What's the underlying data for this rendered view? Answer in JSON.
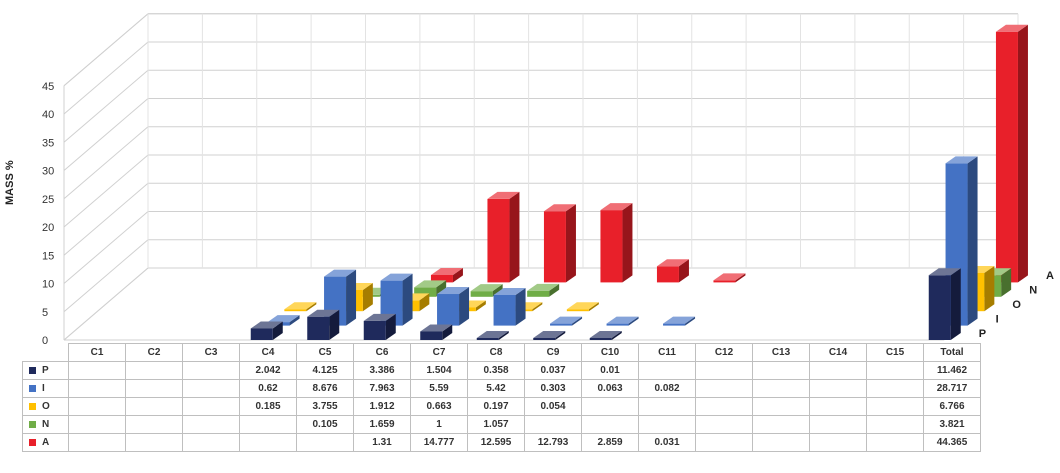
{
  "chart_data": {
    "type": "bar",
    "variant": "3d-column",
    "ylabel": "MASS %",
    "ylim": [
      0,
      45
    ],
    "yticks": [
      0,
      5,
      10,
      15,
      20,
      25,
      30,
      35,
      40,
      45
    ],
    "grid": true,
    "categories": [
      "C1",
      "C2",
      "C3",
      "C4",
      "C5",
      "C6",
      "C7",
      "C8",
      "C9",
      "C10",
      "C11",
      "C12",
      "C13",
      "C14",
      "C15",
      "Total"
    ],
    "series": [
      {
        "name": "P",
        "color": "#1f2a5c",
        "values": [
          null,
          null,
          null,
          2.042,
          4.125,
          3.386,
          1.504,
          0.358,
          0.037,
          0.01,
          null,
          null,
          null,
          null,
          null,
          11.462
        ]
      },
      {
        "name": "I",
        "color": "#4472c4",
        "values": [
          null,
          null,
          null,
          0.62,
          8.676,
          7.963,
          5.59,
          5.42,
          0.303,
          0.063,
          0.082,
          null,
          null,
          null,
          null,
          28.717
        ]
      },
      {
        "name": "O",
        "color": "#ffc000",
        "values": [
          null,
          null,
          null,
          0.185,
          3.755,
          1.912,
          0.663,
          0.197,
          0.054,
          null,
          null,
          null,
          null,
          null,
          null,
          6.766
        ]
      },
      {
        "name": "N",
        "color": "#70ad47",
        "values": [
          null,
          null,
          null,
          null,
          0.105,
          1.659,
          1,
          1.057,
          null,
          null,
          null,
          null,
          null,
          null,
          null,
          3.821
        ]
      },
      {
        "name": "A",
        "color": "#e8202a",
        "values": [
          null,
          null,
          null,
          null,
          null,
          1.31,
          14.777,
          12.595,
          12.793,
          2.859,
          0.031,
          null,
          null,
          null,
          null,
          44.365
        ]
      }
    ],
    "table_values": [
      [
        "",
        "",
        "",
        "2.042",
        "4.125",
        "3.386",
        "1.504",
        "0.358",
        "0.037",
        "0.01",
        "",
        "",
        "",
        "",
        "",
        "11.462"
      ],
      [
        "",
        "",
        "",
        "0.62",
        "8.676",
        "7.963",
        "5.59",
        "5.42",
        "0.303",
        "0.063",
        "0.082",
        "",
        "",
        "",
        "",
        "28.717"
      ],
      [
        "",
        "",
        "",
        "0.185",
        "3.755",
        "1.912",
        "0.663",
        "0.197",
        "0.054",
        "",
        "",
        "",
        "",
        "",
        "",
        "6.766"
      ],
      [
        "",
        "",
        "",
        "",
        "0.105",
        "1.659",
        "1",
        "1.057",
        "",
        "",
        "",
        "",
        "",
        "",
        "",
        "3.821"
      ],
      [
        "",
        "",
        "",
        "",
        "",
        "1.31",
        "14.777",
        "12.595",
        "12.793",
        "2.859",
        "0.031",
        "",
        "",
        "",
        "",
        "44.365"
      ]
    ],
    "legend": "data-table"
  }
}
